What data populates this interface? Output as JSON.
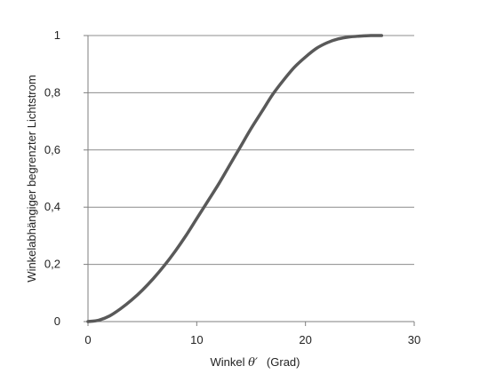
{
  "chart_data": {
    "type": "line",
    "title": "",
    "xlabel": "Winkel ",
    "xlabel_symbol": "θ′",
    "xlabel_unit": "(Grad)",
    "ylabel": "Winkelabhängiger begrenzter Lichtstrom",
    "xlim": [
      0,
      30
    ],
    "ylim": [
      0,
      1
    ],
    "x_ticks": [
      0,
      10,
      20,
      30
    ],
    "x_tick_labels": [
      "0",
      "10",
      "20",
      "30"
    ],
    "y_ticks": [
      0,
      0.2,
      0.4,
      0.6,
      0.8,
      1
    ],
    "y_tick_labels": [
      "0",
      "0,2",
      "0,4",
      "0,6",
      "0,8",
      "1"
    ],
    "grid": "horizontal",
    "legend": "none",
    "series": [
      {
        "color": "#595959",
        "x": [
          0,
          1,
          2,
          3,
          4,
          5,
          6,
          7,
          8,
          9,
          10,
          11,
          12,
          13,
          14,
          15,
          16,
          17,
          18,
          19,
          20,
          21,
          22,
          23,
          24,
          25,
          26,
          27
        ],
        "y": [
          0,
          0.005,
          0.02,
          0.045,
          0.075,
          0.11,
          0.15,
          0.195,
          0.245,
          0.3,
          0.36,
          0.42,
          0.48,
          0.545,
          0.61,
          0.675,
          0.735,
          0.795,
          0.845,
          0.89,
          0.925,
          0.955,
          0.975,
          0.988,
          0.995,
          0.998,
          1.0,
          1.0
        ]
      }
    ]
  }
}
